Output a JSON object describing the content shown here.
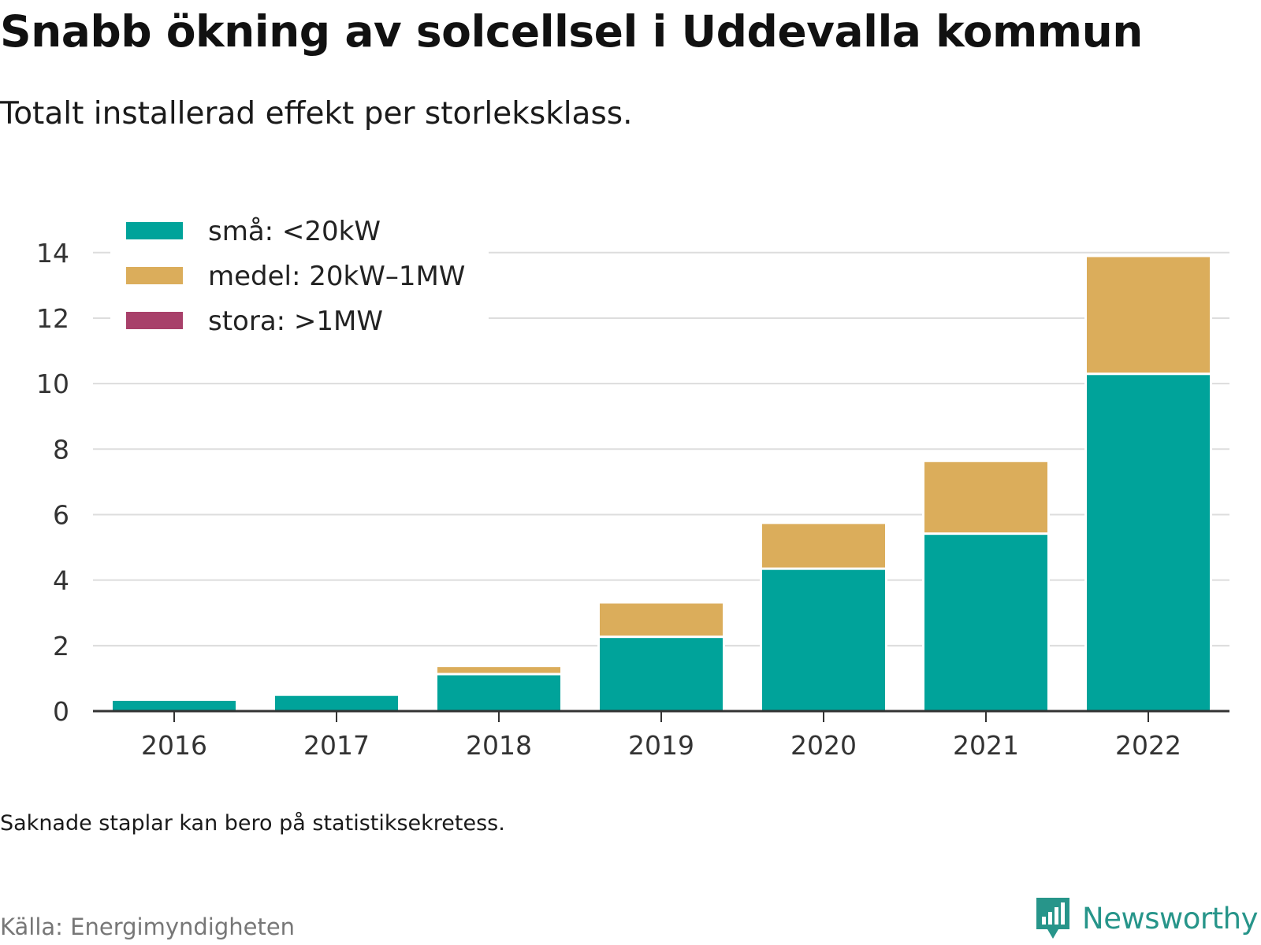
{
  "title": "Snabb ökning av solcellsel i Uddevalla kommun",
  "subtitle": "Totalt installerad effekt per storleksklass.",
  "note": "Saknade staplar kan bero på statistiksekretess.",
  "source": "Källa: Energimyndigheten",
  "brand": "Newsworthy",
  "colors": {
    "small": "#00a39a",
    "medium": "#dbad5b",
    "large": "#a8406a",
    "grid": "#dddddd",
    "axis": "#333333",
    "brand": "#27958a"
  },
  "chart_data": {
    "type": "bar",
    "stacked": true,
    "categories": [
      "2016",
      "2017",
      "2018",
      "2019",
      "2020",
      "2021",
      "2022"
    ],
    "series": [
      {
        "name": "små: <20kW",
        "color": "#00a39a",
        "values": [
          0.35,
          0.5,
          1.13,
          2.27,
          4.35,
          5.42,
          10.3
        ]
      },
      {
        "name": "medel: 20kW–1MW",
        "color": "#dbad5b",
        "values": [
          0,
          0,
          0.25,
          1.05,
          1.4,
          2.22,
          3.6
        ]
      },
      {
        "name": "stora: >1MW",
        "color": "#a8406a",
        "values": [
          0,
          0,
          0,
          0,
          0,
          0,
          0
        ]
      }
    ],
    "yticks": [
      0,
      2,
      4,
      6,
      8,
      10,
      12,
      14
    ],
    "ylim": [
      0,
      14.5
    ],
    "grid": true,
    "legend": "top-left"
  }
}
